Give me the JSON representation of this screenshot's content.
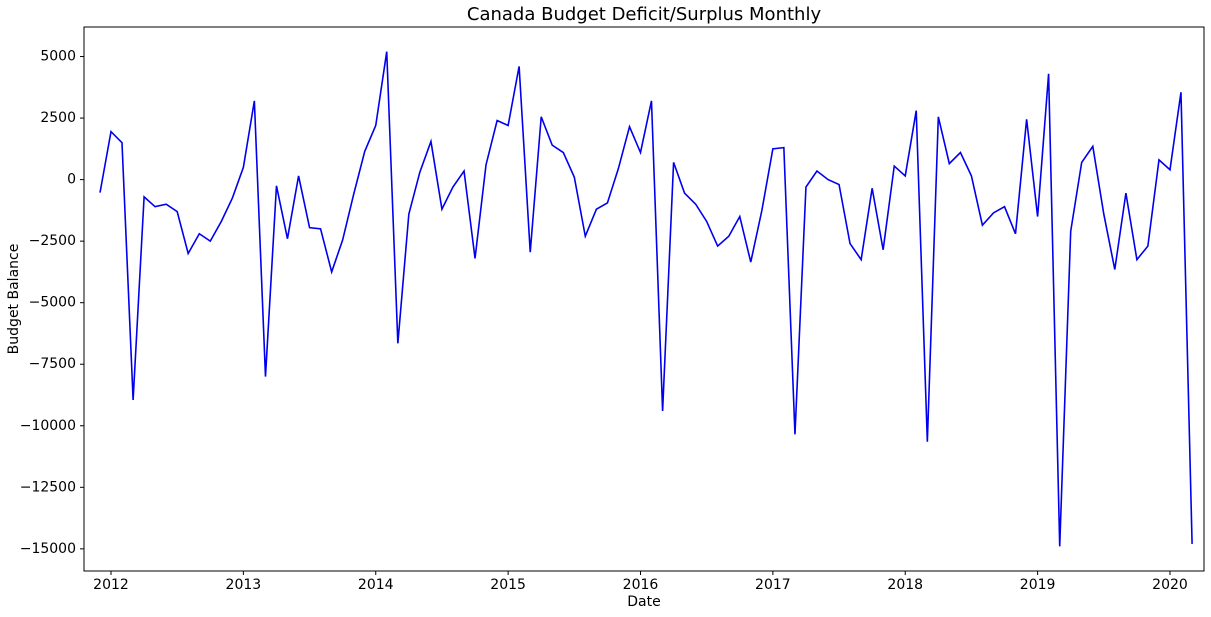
{
  "chart_data": {
    "type": "line",
    "title": "Canada Budget Deficit/Surplus Monthly",
    "x_label": "Date",
    "y_label": "Budget Balance",
    "color": "#0000ee",
    "x": [
      2011.917,
      2012,
      2012.083,
      2012.167,
      2012.25,
      2012.333,
      2012.417,
      2012.5,
      2012.583,
      2012.667,
      2012.75,
      2012.833,
      2012.917,
      2013,
      2013.083,
      2013.167,
      2013.25,
      2013.333,
      2013.417,
      2013.5,
      2013.583,
      2013.667,
      2013.75,
      2013.833,
      2013.917,
      2014,
      2014.083,
      2014.167,
      2014.25,
      2014.333,
      2014.417,
      2014.5,
      2014.583,
      2014.667,
      2014.75,
      2014.833,
      2014.917,
      2015,
      2015.083,
      2015.167,
      2015.25,
      2015.333,
      2015.417,
      2015.5,
      2015.583,
      2015.667,
      2015.75,
      2015.833,
      2015.917,
      2016,
      2016.083,
      2016.167,
      2016.25,
      2016.333,
      2016.417,
      2016.5,
      2016.583,
      2016.667,
      2016.75,
      2016.833,
      2016.917,
      2017,
      2017.083,
      2017.167,
      2017.25,
      2017.333,
      2017.417,
      2017.5,
      2017.583,
      2017.667,
      2017.75,
      2017.833,
      2017.917,
      2018,
      2018.083,
      2018.167,
      2018.25,
      2018.333,
      2018.417,
      2018.5,
      2018.583,
      2018.667,
      2018.75,
      2018.833,
      2018.917,
      2019,
      2019.083,
      2019.167,
      2019.25,
      2019.333,
      2019.417,
      2019.5,
      2019.583,
      2019.667,
      2019.75,
      2019.833,
      2019.917,
      2020,
      2020.083,
      2020.167
    ],
    "values": [
      -530,
      1950,
      1500,
      -8950,
      -700,
      -1100,
      -1000,
      -1300,
      -3000,
      -2200,
      -2500,
      -1700,
      -750,
      500,
      3200,
      -8000,
      -250,
      -2400,
      150,
      -1950,
      -2000,
      -3750,
      -2450,
      -600,
      1150,
      2200,
      5200,
      -6650,
      -1400,
      300,
      1550,
      -1200,
      -300,
      350,
      -3200,
      600,
      2400,
      2200,
      4600,
      -2950,
      2550,
      1400,
      1100,
      100,
      -2300,
      -1200,
      -950,
      450,
      2150,
      1100,
      3200,
      -9400,
      700,
      -550,
      -1000,
      -1700,
      -2700,
      -2300,
      -1500,
      -3350,
      -1250,
      1250,
      1300,
      -10350,
      -300,
      350,
      0,
      -200,
      -2600,
      -3250,
      -350,
      -2850,
      550,
      150,
      2800,
      -10650,
      2550,
      650,
      1100,
      150,
      -1850,
      -1350,
      -1100,
      -2200,
      2450,
      -1500,
      4300,
      -14900,
      -2100,
      700,
      1350,
      -1400,
      -3650,
      -550,
      -3250,
      -2700,
      800,
      400,
      3550,
      -14800
    ],
    "xlim": [
      2011.796,
      2020.257
    ],
    "xticks": [
      2012,
      2013,
      2014,
      2015,
      2016,
      2017,
      2018,
      2019,
      2020
    ],
    "ylim": [
      -15900,
      6200
    ],
    "yticks": [
      {
        "value": -15000,
        "label": "−15000"
      },
      {
        "value": -12500,
        "label": "−12500"
      },
      {
        "value": -10000,
        "label": "−10000"
      },
      {
        "value": -7500,
        "label": "−7500"
      },
      {
        "value": -5000,
        "label": "−5000"
      },
      {
        "value": -2500,
        "label": "−2500"
      },
      0,
      2500,
      5000
    ],
    "grid": false
  }
}
